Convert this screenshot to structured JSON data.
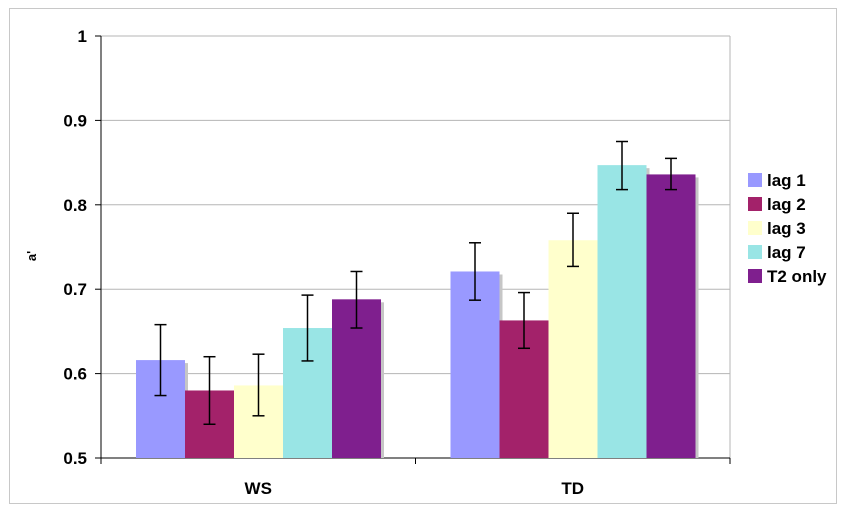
{
  "chart_data": {
    "type": "bar",
    "title": "",
    "xlabel": "",
    "ylabel": "a'",
    "ylim": [
      0.5,
      1
    ],
    "yticks": [
      "0.5",
      "0.6",
      "0.7",
      "0.8",
      "0.9",
      "1"
    ],
    "categories": [
      "WS",
      "TD"
    ],
    "grid": true,
    "legend_position": "right",
    "error_bars": true,
    "series": [
      {
        "name": "lag 1",
        "color": "#9999ff",
        "values": [
          0.616,
          0.721
        ],
        "err_low": [
          0.574,
          0.687
        ],
        "err_high": [
          0.658,
          0.755
        ]
      },
      {
        "name": "lag 2",
        "color": "#a3226a",
        "values": [
          0.58,
          0.663
        ],
        "err_low": [
          0.54,
          0.63
        ],
        "err_high": [
          0.62,
          0.696
        ]
      },
      {
        "name": "lag 3",
        "color": "#ffffcc",
        "values": [
          0.586,
          0.758
        ],
        "err_low": [
          0.55,
          0.727
        ],
        "err_high": [
          0.623,
          0.79
        ]
      },
      {
        "name": "lag 7",
        "color": "#99e5e5",
        "values": [
          0.654,
          0.847
        ],
        "err_low": [
          0.615,
          0.818
        ],
        "err_high": [
          0.693,
          0.875
        ]
      },
      {
        "name": "T2 only",
        "color": "#7f1f8e",
        "values": [
          0.688,
          0.836
        ],
        "err_low": [
          0.654,
          0.818
        ],
        "err_high": [
          0.721,
          0.855
        ]
      }
    ]
  }
}
